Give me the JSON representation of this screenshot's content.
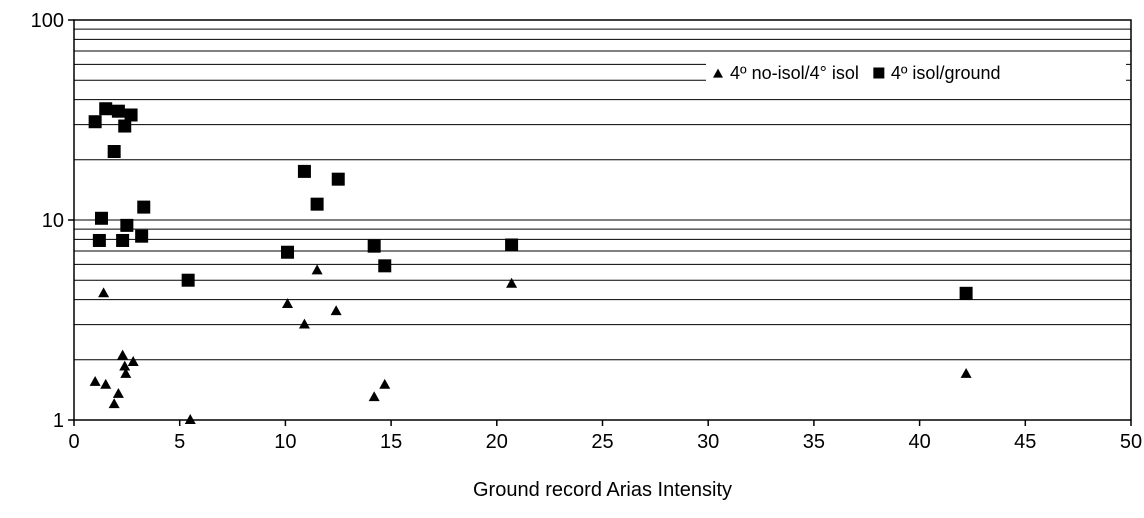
{
  "chart_data": {
    "type": "scatter",
    "title": "",
    "xlabel": "Ground record Arias Intensity",
    "ylabel": "",
    "xlim": [
      0,
      50
    ],
    "ylim": [
      1,
      100
    ],
    "yscale": "log",
    "x_ticks": [
      "0",
      "5",
      "10",
      "15",
      "20",
      "25",
      "30",
      "35",
      "40",
      "45",
      "50"
    ],
    "y_ticks": [
      "1",
      "10",
      "100"
    ],
    "grid": "horizontal",
    "legend_position": "top-right",
    "series": [
      {
        "name": "4º no-isol/4° isol",
        "marker": "triangle",
        "color": "#000000",
        "points": [
          [
            1.0,
            1.55
          ],
          [
            1.4,
            4.3
          ],
          [
            1.5,
            1.5
          ],
          [
            1.9,
            1.2
          ],
          [
            2.1,
            1.35
          ],
          [
            2.3,
            2.1
          ],
          [
            2.4,
            1.85
          ],
          [
            2.45,
            1.7
          ],
          [
            2.8,
            1.95
          ],
          [
            5.5,
            1.0
          ],
          [
            10.1,
            3.8
          ],
          [
            10.9,
            3.0
          ],
          [
            11.5,
            5.6
          ],
          [
            12.4,
            3.5
          ],
          [
            14.2,
            1.3
          ],
          [
            14.7,
            1.5
          ],
          [
            20.7,
            4.8
          ],
          [
            42.2,
            1.7
          ]
        ]
      },
      {
        "name": "4º isol/ground",
        "marker": "square",
        "color": "#000000",
        "points": [
          [
            1.0,
            31
          ],
          [
            1.2,
            7.9
          ],
          [
            1.3,
            10.2
          ],
          [
            1.5,
            36
          ],
          [
            1.9,
            22
          ],
          [
            2.1,
            35
          ],
          [
            2.3,
            7.9
          ],
          [
            2.4,
            29.5
          ],
          [
            2.5,
            9.4
          ],
          [
            2.7,
            33.5
          ],
          [
            3.2,
            8.3
          ],
          [
            3.3,
            11.6
          ],
          [
            5.4,
            5.0
          ],
          [
            10.1,
            6.9
          ],
          [
            10.9,
            17.5
          ],
          [
            11.5,
            12.0
          ],
          [
            12.5,
            16.0
          ],
          [
            14.2,
            7.4
          ],
          [
            14.7,
            5.9
          ],
          [
            20.7,
            7.5
          ],
          [
            42.2,
            4.3
          ]
        ]
      }
    ]
  }
}
